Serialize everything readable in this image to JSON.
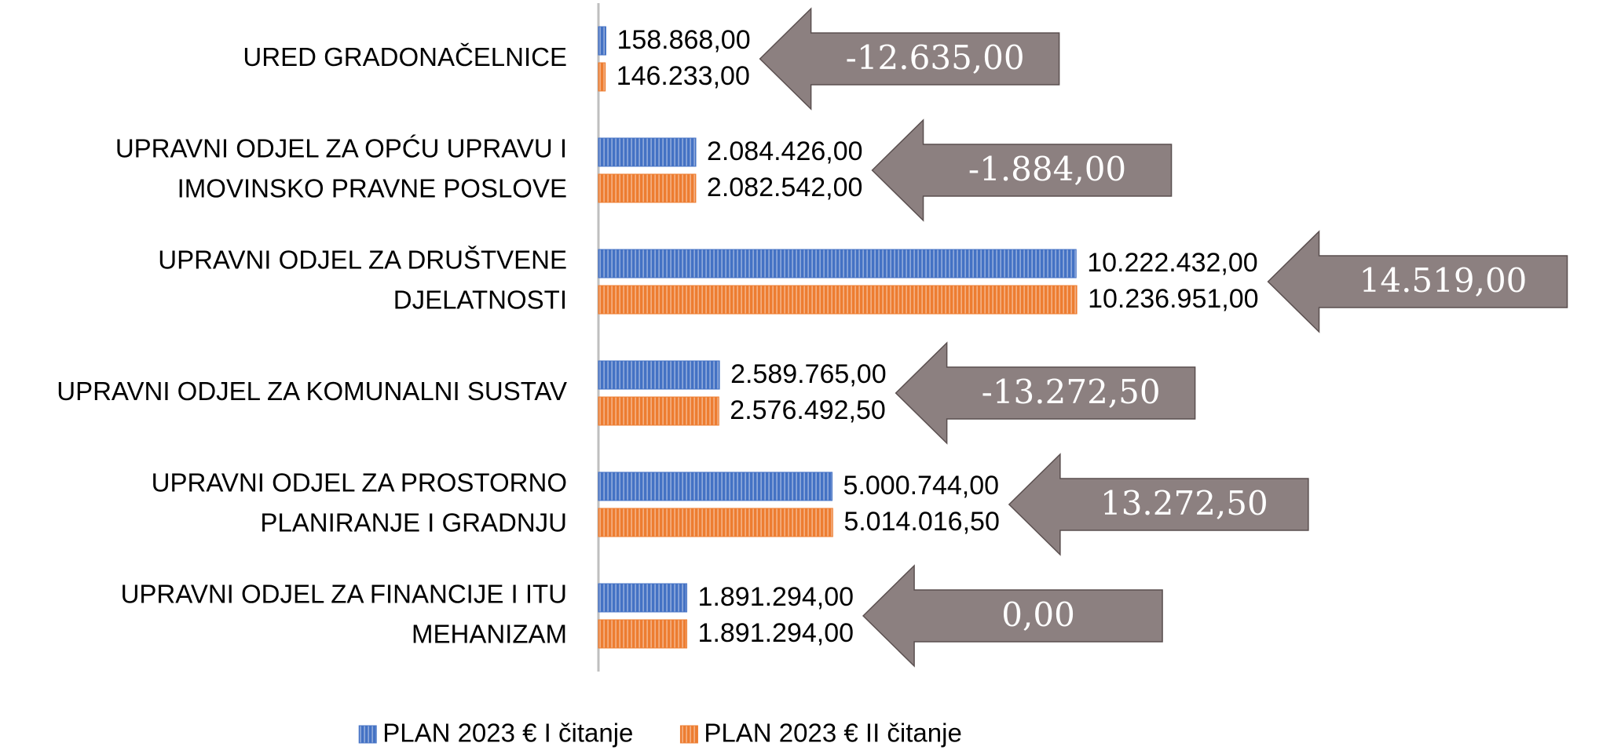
{
  "chart_data": {
    "type": "bar",
    "orientation": "horizontal",
    "categories": [
      "URED GRADONAČELNICE",
      "UPRAVNI ODJEL ZA OPĆU UPRAVU I IMOVINSKO PRAVNE POSLOVE",
      "UPRAVNI ODJEL ZA DRUŠTVENE DJELATNOSTI",
      "UPRAVNI ODJEL ZA KOMUNALNI SUSTAV",
      "UPRAVNI ODJEL ZA PROSTORNO PLANIRANJE I GRADNJU",
      "UPRAVNI ODJEL ZA FINANCIJE I ITU MEHANIZAM"
    ],
    "series": [
      {
        "name": "PLAN 2023 € I čitanje",
        "color": "#4472c4",
        "values": [
          158868,
          2084426,
          10222432,
          2589765,
          5000744,
          1891294
        ],
        "value_labels": [
          "158.868,00",
          "2.084.426,00",
          "10.222.432,00",
          "2.589.765,00",
          "5.000.744,00",
          "1.891.294,00"
        ]
      },
      {
        "name": "PLAN 2023 € II čitanje",
        "color": "#ed7d31",
        "values": [
          146233,
          2082542,
          10236951,
          2576492.5,
          5014016.5,
          1891294
        ],
        "value_labels": [
          "146.233,00",
          "2.082.542,00",
          "10.236.951,00",
          "2.576.492,50",
          "5.014.016,50",
          "1.891.294,00"
        ]
      }
    ],
    "annotations": [
      {
        "value": -12635,
        "label": "-12.635,00"
      },
      {
        "value": -1884,
        "label": "-1.884,00"
      },
      {
        "value": 14519,
        "label": "14.519,00"
      },
      {
        "value": -13272.5,
        "label": "-13.272,50"
      },
      {
        "value": 13272.5,
        "label": "13.272,50"
      },
      {
        "value": 0,
        "label": "0,00"
      }
    ],
    "annotation_color": "#8c8080",
    "xlim": [
      0,
      11000000
    ],
    "legend": "bottom"
  }
}
